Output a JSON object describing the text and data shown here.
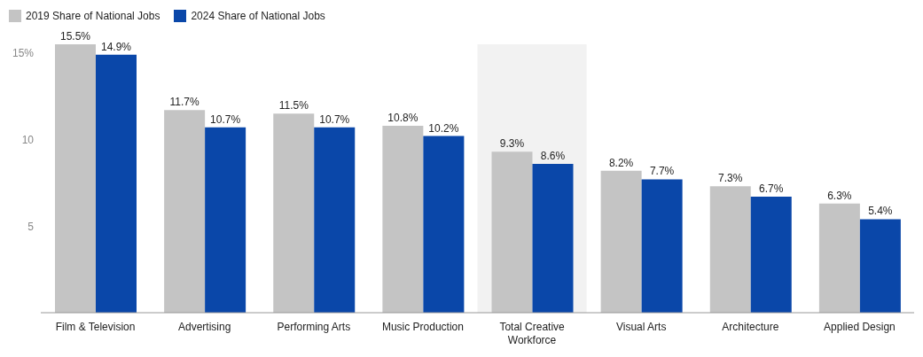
{
  "chart_data": {
    "type": "bar",
    "categories": [
      "Film & Television",
      "Advertising",
      "Performing Arts",
      "Music Production",
      "Total Creative Workforce",
      "Visual Arts",
      "Architecture",
      "Applied Design"
    ],
    "series": [
      {
        "name": "2019 Share of National Jobs",
        "color": "#c4c4c4",
        "values": [
          15.5,
          11.7,
          11.5,
          10.8,
          9.3,
          8.2,
          7.3,
          6.3
        ],
        "value_labels": [
          "15.5%",
          "11.7%",
          "11.5%",
          "10.8%",
          "9.3%",
          "8.2%",
          "7.3%",
          "6.3%"
        ]
      },
      {
        "name": "2024 Share of National Jobs",
        "color": "#0a47a9",
        "values": [
          14.9,
          10.7,
          10.7,
          10.2,
          8.6,
          7.7,
          6.7,
          5.4
        ],
        "value_labels": [
          "14.9%",
          "10.7%",
          "10.7%",
          "10.2%",
          "8.6%",
          "7.7%",
          "6.7%",
          "5.4%"
        ]
      }
    ],
    "ylim": [
      0,
      15.5
    ],
    "yticks": [
      5,
      10,
      {
        "value": 15,
        "label": "15%"
      }
    ],
    "bands": [
      {
        "axis": "x",
        "from": "Total Creative Workforce",
        "to": "Total Creative Workforce",
        "color": "#f2f2f2"
      }
    ],
    "grid": false,
    "legend": "top left"
  }
}
